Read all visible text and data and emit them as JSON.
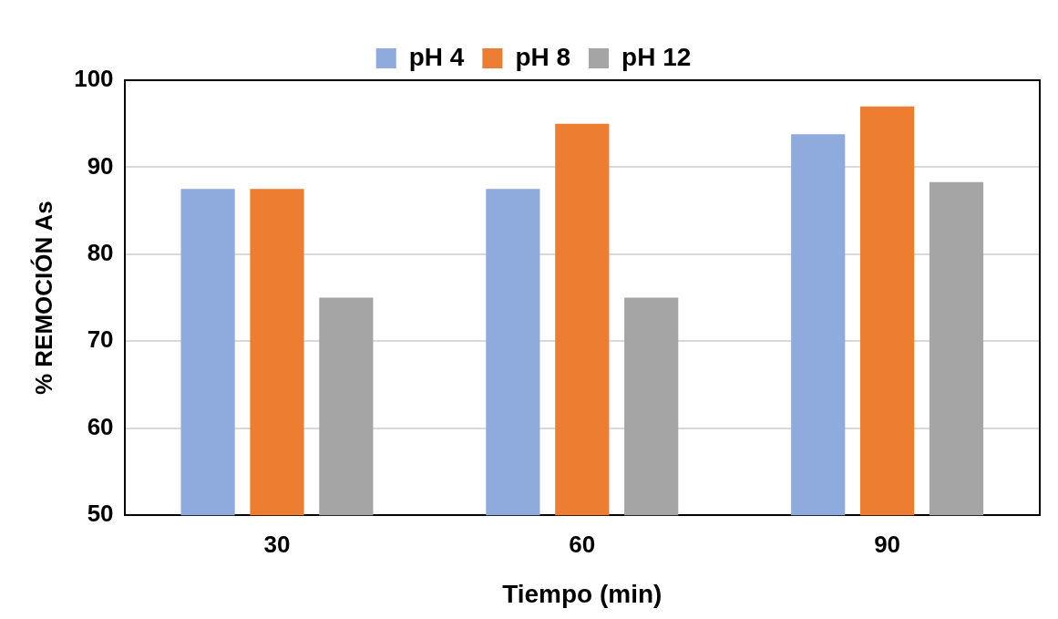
{
  "chart_data": {
    "type": "bar",
    "xlabel": "Tiempo (min)",
    "ylabel": "% REMOCIÓN As",
    "categories": [
      "30",
      "60",
      "90"
    ],
    "series": [
      {
        "name": "pH 4",
        "color": "#8faadc",
        "values": [
          87.5,
          87.5,
          93.8
        ]
      },
      {
        "name": "pH 8",
        "color": "#ed7d31",
        "values": [
          87.5,
          95,
          97
        ]
      },
      {
        "name": "pH 12",
        "color": "#a5a5a5",
        "values": [
          75,
          75,
          88.3
        ]
      }
    ],
    "ylim": [
      50,
      100
    ],
    "yticks": [
      50,
      60,
      70,
      80,
      90,
      100
    ],
    "grid": "y",
    "legend": "top"
  }
}
